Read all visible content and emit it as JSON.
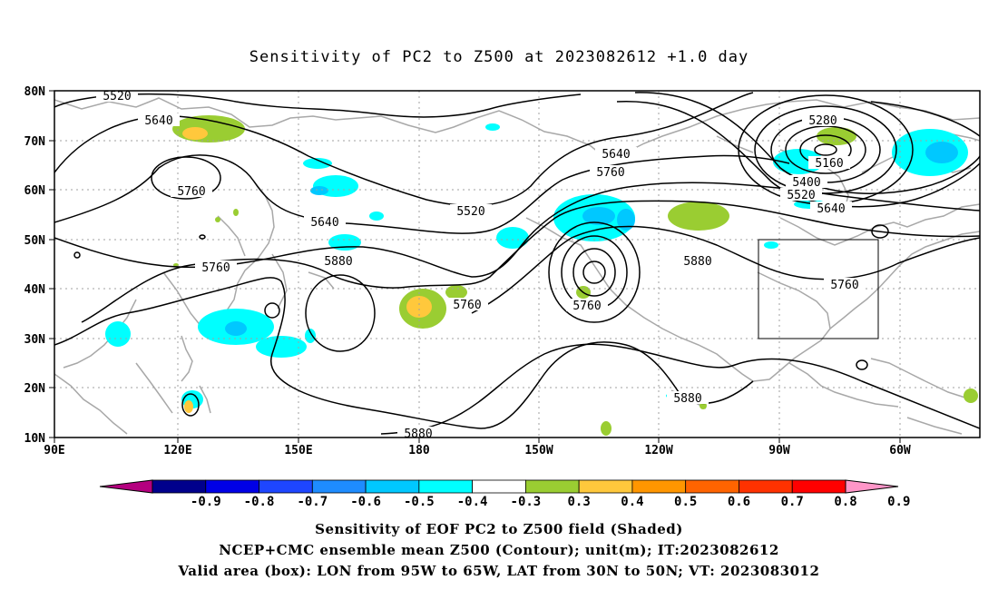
{
  "title": "Sensitivity of PC2 to Z500 at 2023082612 +1.0 day",
  "lat_ticks": [
    "80N",
    "70N",
    "60N",
    "50N",
    "40N",
    "30N",
    "20N",
    "10N"
  ],
  "lon_ticks": [
    "90E",
    "120E",
    "150E",
    "180",
    "150W",
    "120W",
    "90W",
    "60W"
  ],
  "contour_labels": [
    "5520",
    "5640",
    "5760",
    "5640",
    "5760",
    "5880",
    "5880",
    "5520",
    "5640",
    "5760",
    "5760",
    "5880",
    "5280",
    "5160",
    "5400",
    "5520",
    "5640",
    "5760",
    "5880",
    "5760"
  ],
  "colorbar": {
    "labels": [
      "-0.9",
      "-0.8",
      "-0.7",
      "-0.6",
      "-0.5",
      "-0.4",
      "-0.3",
      "0.3",
      "0.4",
      "0.5",
      "0.6",
      "0.7",
      "0.8",
      "0.9"
    ],
    "colors": [
      "#b4007f",
      "#00008c",
      "#0000e6",
      "#1e46ff",
      "#1e8cff",
      "#00c8ff",
      "#00ffff",
      "#ffffff",
      "#9acd32",
      "#ffc83c",
      "#ff9600",
      "#ff6400",
      "#ff3200",
      "#ff0000",
      "#ff96c8"
    ]
  },
  "valid_box": {
    "lon_from": "95W",
    "lon_to": "65W",
    "lat_from": "30N",
    "lat_to": "50N"
  },
  "captions": [
    "Sensitivity of EOF PC2 to Z500 field (Shaded)",
    "NCEP+CMC ensemble mean Z500 (Contour); unit(m); IT:2023082612",
    "Valid area (box): LON from 95W to 65W, LAT from 30N to 50N; VT: 2023083012"
  ]
}
